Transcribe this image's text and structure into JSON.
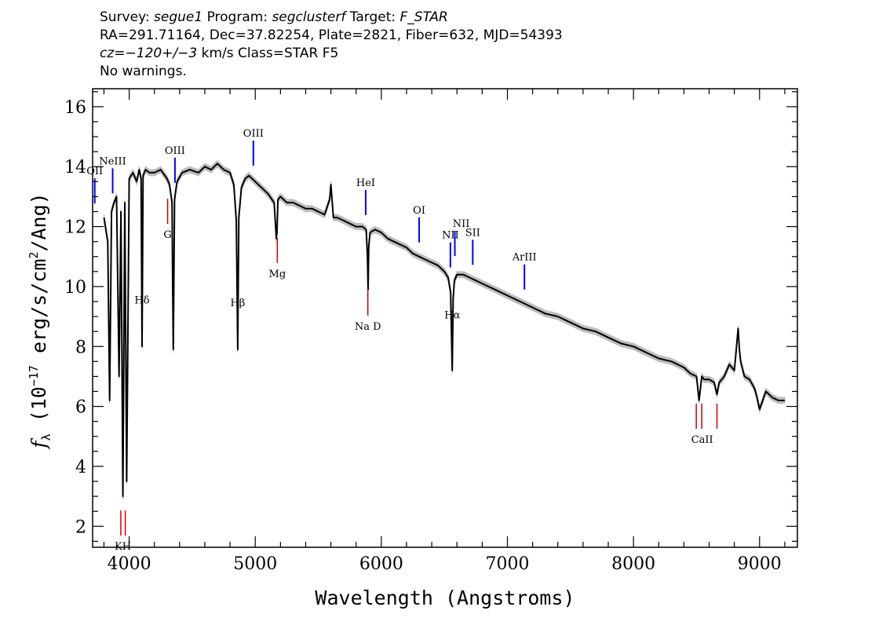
{
  "header": {
    "line1": {
      "survey_label": "Survey: ",
      "survey": "segue1",
      "program_label": " Program: ",
      "program": "segclusterf",
      "target_label": " Target: ",
      "target": "F_STAR"
    },
    "line2": "RA=291.71164, Dec=37.82254, Plate=2821, Fiber=632, MJD=54393",
    "line3": {
      "cz": "cz=−120+/−3",
      "rest": " km/s Class=STAR F5"
    },
    "line4": "No warnings."
  },
  "chart_data": {
    "type": "line",
    "xlabel": "Wavelength (Angstroms)",
    "ylabel": "f_λ (10^-17 erg/s/cm^2/Ang)",
    "ylabel_parts": {
      "f": "f",
      "lambda": "λ",
      "unit_a": " (10",
      "exp17": "−17",
      "unit_b": " erg/s/cm",
      "exp2": "2",
      "unit_c": "/Ang)"
    },
    "xlim": [
      3710,
      9300
    ],
    "ylim": [
      1.3,
      16.6
    ],
    "x_ticks": [
      4000,
      5000,
      6000,
      7000,
      8000,
      9000
    ],
    "x_tick_labels": [
      "4000",
      "5000",
      "6000",
      "7000",
      "8000",
      "9000"
    ],
    "y_ticks": [
      2,
      4,
      6,
      8,
      10,
      12,
      14,
      16
    ],
    "y_tick_labels": [
      "2",
      "4",
      "6",
      "8",
      "10",
      "12",
      "14",
      "16"
    ],
    "series": [
      {
        "color": "#000000",
        "x": [
          3800,
          3830,
          3845,
          3860,
          3880,
          3900,
          3920,
          3935,
          3950,
          3965,
          3980,
          4000,
          4030,
          4060,
          4080,
          4095,
          4102,
          4110,
          4130,
          4160,
          4200,
          4250,
          4300,
          4320,
          4340,
          4345,
          4350,
          4360,
          4380,
          4420,
          4480,
          4550,
          4600,
          4650,
          4700,
          4750,
          4800,
          4830,
          4850,
          4861,
          4870,
          4890,
          4920,
          4950,
          5000,
          5050,
          5100,
          5150,
          5167,
          5172,
          5180,
          5200,
          5250,
          5300,
          5350,
          5400,
          5450,
          5500,
          5550,
          5590,
          5600,
          5620,
          5650,
          5700,
          5750,
          5800,
          5850,
          5880,
          5890,
          5895,
          5900,
          5910,
          5950,
          6000,
          6050,
          6100,
          6150,
          6200,
          6250,
          6300,
          6350,
          6400,
          6450,
          6500,
          6530,
          6550,
          6562,
          6570,
          6580,
          6600,
          6650,
          6700,
          6750,
          6800,
          6900,
          7000,
          7100,
          7200,
          7300,
          7400,
          7500,
          7600,
          7700,
          7800,
          7900,
          8000,
          8100,
          8200,
          8300,
          8400,
          8450,
          8500,
          8520,
          8542,
          8560,
          8600,
          8640,
          8662,
          8680,
          8720,
          8760,
          8800,
          8830,
          8840,
          8850,
          8880,
          8920,
          8960,
          8980,
          9000,
          9050,
          9100,
          9150,
          9200
        ],
        "y": [
          12.3,
          11.5,
          6.2,
          12.5,
          12.8,
          13.0,
          7.0,
          12.5,
          3.0,
          12.8,
          3.5,
          13.6,
          13.8,
          13.5,
          13.9,
          13.6,
          8.0,
          13.7,
          13.9,
          13.8,
          13.8,
          13.9,
          13.6,
          13.4,
          12.8,
          10.0,
          7.9,
          12.9,
          13.5,
          13.8,
          13.9,
          13.8,
          14.0,
          13.9,
          14.1,
          13.9,
          13.8,
          13.4,
          12.2,
          7.9,
          12.3,
          13.3,
          13.6,
          13.7,
          13.5,
          13.3,
          13.1,
          12.8,
          11.6,
          11.8,
          12.9,
          13.0,
          12.8,
          12.8,
          12.7,
          12.6,
          12.6,
          12.5,
          12.4,
          12.9,
          13.4,
          12.3,
          12.3,
          12.2,
          12.1,
          12.0,
          12.0,
          11.9,
          11.0,
          9.9,
          11.3,
          11.8,
          11.9,
          11.8,
          11.6,
          11.5,
          11.4,
          11.3,
          11.1,
          11.0,
          10.9,
          10.8,
          10.7,
          10.5,
          10.3,
          9.8,
          7.2,
          9.6,
          10.2,
          10.4,
          10.4,
          10.3,
          10.2,
          10.1,
          9.9,
          9.7,
          9.5,
          9.3,
          9.1,
          9.0,
          8.8,
          8.6,
          8.5,
          8.3,
          8.1,
          8.0,
          7.8,
          7.6,
          7.5,
          7.3,
          7.1,
          7.0,
          6.2,
          7.0,
          6.9,
          6.9,
          6.8,
          6.4,
          6.8,
          7.0,
          7.4,
          7.2,
          8.6,
          7.9,
          7.5,
          7.0,
          6.9,
          6.6,
          6.3,
          5.9,
          6.5,
          6.3,
          6.2,
          6.2
        ]
      }
    ],
    "absorption_lines": [
      {
        "label": "Mg",
        "x": 5175
      },
      {
        "label": "Na  D",
        "x": 5893
      },
      {
        "label": "G",
        "x": 4305
      },
      {
        "label": "KH",
        "x": 3950
      },
      {
        "label": "CaII",
        "x": 8545
      }
    ],
    "emission_lines": [
      {
        "label": "HeI",
        "x": 5876
      },
      {
        "label": "OI",
        "x": 6300
      },
      {
        "label": "Hα",
        "x": 6563
      },
      {
        "label": "NII",
        "x": 6548
      },
      {
        "label": "NII",
        "x": 6583
      },
      {
        "label": "SII",
        "x": 6725
      },
      {
        "label": "ArIII",
        "x": 7135
      },
      {
        "label": "OIII",
        "x": 4363
      },
      {
        "label": "OIII",
        "x": 4985
      },
      {
        "label": "Hβ",
        "x": 4861
      },
      {
        "label": "Hδ",
        "x": 4102
      },
      {
        "label": "NeIII",
        "x": 3869
      },
      {
        "label": "OII",
        "x": 3727
      }
    ],
    "colors": {
      "spectrum": "#000000",
      "error_band": "#bdbdbd",
      "emission": "#0000ff",
      "absorption": "#cc0000"
    }
  }
}
